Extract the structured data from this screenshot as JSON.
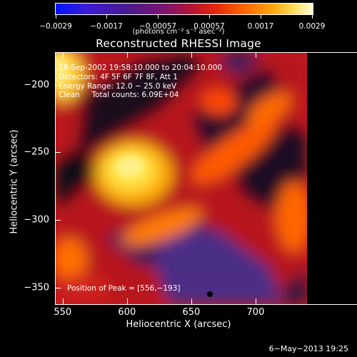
{
  "colorbar": {
    "ticks": [
      "−0.0029",
      "−0.0017",
      "−0.00057",
      "0.00057",
      "0.0017",
      "0.0029"
    ],
    "unit": "(photons cm⁻² s⁻¹ asec⁻²)",
    "range": [
      -0.0029,
      0.0029
    ]
  },
  "title": "Reconstructed RHESSI Image",
  "info": {
    "time": "18-Sep-2002 19:58:10.000 to 20:04:10.000",
    "detectors": "Detectors: 4F 5F 6F 7F 8F, Att 1",
    "energy": "Energy Range: 12.0 − 25.0 keV",
    "clean": "Clean     Total counts: 6.09E+04"
  },
  "peak": "Position of Peak = [556,−193]",
  "footer": "6−May−2013 19:25",
  "chart_data": {
    "type": "heatmap",
    "title": "Reconstructed RHESSI Image",
    "xlabel": "Heliocentric X (arcsec)",
    "ylabel": "Heliocentric Y (arcsec)",
    "xlim": [
      544,
      740
    ],
    "ylim": [
      -362,
      -176
    ],
    "x_ticks": [
      "550",
      "600",
      "650",
      "700"
    ],
    "y_ticks": [
      "−200",
      "−250",
      "−300",
      "−350"
    ],
    "x_tick_values": [
      550,
      600,
      650,
      700
    ],
    "y_tick_values": [
      -200,
      -250,
      -300,
      -350
    ],
    "colorbar_range": [
      -0.0029,
      0.0029
    ],
    "peak": [
      556,
      -193
    ]
  }
}
